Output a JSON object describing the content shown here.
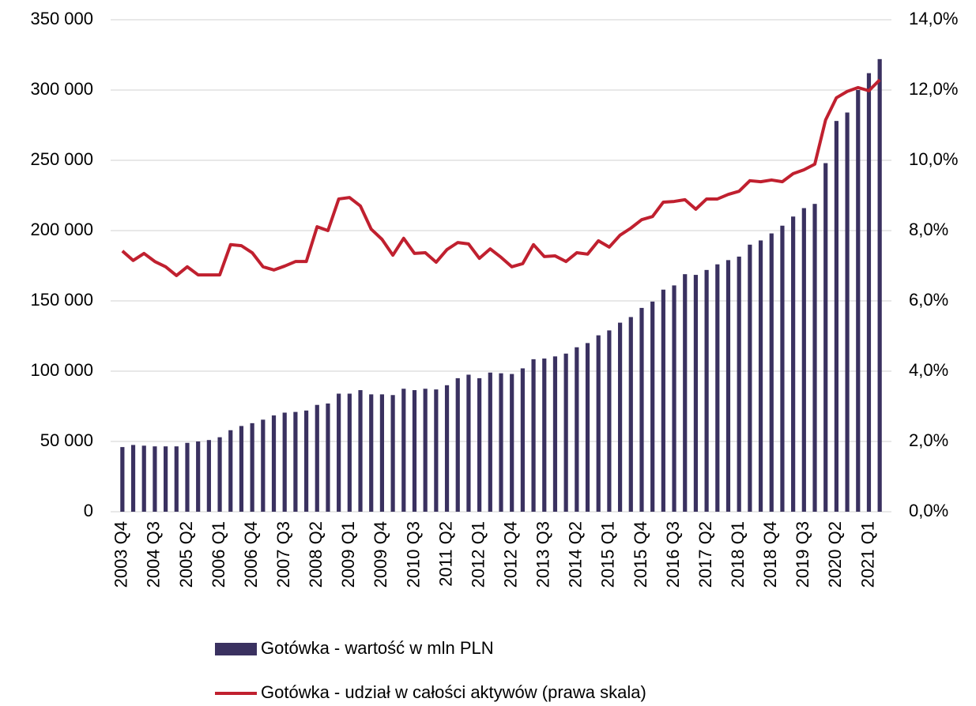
{
  "chart_data": {
    "type": "bar_line",
    "categories": [
      "2003 Q4",
      null,
      null,
      "2004 Q3",
      null,
      null,
      "2005 Q2",
      null,
      null,
      "2006 Q1",
      null,
      null,
      "2006 Q4",
      null,
      null,
      "2007 Q3",
      null,
      null,
      "2008 Q2",
      null,
      null,
      "2009 Q1",
      null,
      null,
      "2009 Q4",
      null,
      null,
      "2010 Q3",
      null,
      null,
      "2011 Q2",
      null,
      null,
      "2012 Q1",
      null,
      null,
      "2012 Q4",
      null,
      null,
      "2013 Q3",
      null,
      null,
      "2014 Q2",
      null,
      null,
      "2015 Q1",
      null,
      null,
      "2015 Q4",
      null,
      null,
      "2016 Q3",
      null,
      null,
      "2017 Q2",
      null,
      null,
      "2018 Q1",
      null,
      null,
      "2018 Q4",
      null,
      null,
      "2019 Q3",
      null,
      null,
      "2020 Q2",
      null,
      null,
      "2021 Q1",
      null
    ],
    "series": [
      {
        "name": "Gotówka - wartość w mln PLN",
        "type": "bar",
        "color": "#3a3160",
        "values": [
          46000,
          47500,
          47000,
          46500,
          46500,
          46500,
          49000,
          50000,
          51000,
          53000,
          58000,
          61000,
          63000,
          65500,
          68500,
          70500,
          71000,
          72000,
          76000,
          77000,
          84000,
          84000,
          86500,
          83500,
          83500,
          83000,
          87500,
          86500,
          87500,
          87000,
          90000,
          95000,
          97500,
          95000,
          99000,
          98500,
          98000,
          102000,
          108500,
          109000,
          110500,
          112500,
          117000,
          120000,
          125500,
          129000,
          134500,
          138500,
          145000,
          149500,
          158000,
          161000,
          169000,
          168500,
          172000,
          176000,
          179000,
          181500,
          190000,
          193000,
          198000,
          203500,
          210000,
          216000,
          219000,
          248000,
          278000,
          284000,
          300000,
          312000,
          322000
        ]
      },
      {
        "name": "Gotówka - udział w całości aktywów (prawa skala)",
        "type": "line",
        "axis": "y2",
        "color": "#c0202f",
        "values": [
          7.42,
          7.15,
          7.35,
          7.12,
          6.97,
          6.72,
          6.97,
          6.74,
          6.74,
          6.74,
          7.6,
          7.57,
          7.37,
          6.97,
          6.88,
          6.99,
          7.12,
          7.12,
          8.11,
          8.0,
          8.9,
          8.94,
          8.7,
          8.04,
          7.75,
          7.3,
          7.78,
          7.35,
          7.37,
          7.1,
          7.46,
          7.66,
          7.62,
          7.21,
          7.48,
          7.24,
          6.97,
          7.06,
          7.6,
          7.26,
          7.28,
          7.12,
          7.37,
          7.33,
          7.71,
          7.53,
          7.87,
          8.07,
          8.31,
          8.4,
          8.81,
          8.83,
          8.88,
          8.61,
          8.9,
          8.9,
          9.03,
          9.12,
          9.42,
          9.39,
          9.44,
          9.39,
          9.62,
          9.73,
          9.89,
          11.15,
          11.78,
          11.96,
          12.07,
          11.98,
          12.29
        ]
      }
    ],
    "ylim": [
      0,
      350000
    ],
    "yticks": [
      0,
      {
        "value": 50000,
        "label": "50 000"
      },
      {
        "value": 100000,
        "label": "100 000"
      },
      {
        "value": 150000,
        "label": "150 000"
      },
      {
        "value": 200000,
        "label": "200 000"
      },
      {
        "value": 250000,
        "label": "250 000"
      },
      {
        "value": 300000,
        "label": "300 000"
      },
      {
        "value": 350000,
        "label": "350 000"
      }
    ],
    "y2lim": [
      0,
      14
    ],
    "y2ticks": [
      {
        "value": 0,
        "label": "0,0%"
      },
      {
        "value": 2,
        "label": "2,0%"
      },
      {
        "value": 4,
        "label": "4,0%"
      },
      {
        "value": 6,
        "label": "6,0%"
      },
      {
        "value": 8,
        "label": "8,0%"
      },
      {
        "value": 10,
        "label": "10,0%"
      },
      {
        "value": 12,
        "label": "12,0%"
      },
      {
        "value": 14,
        "label": "14,0%"
      }
    ],
    "grid": true,
    "legend": "bottom"
  }
}
